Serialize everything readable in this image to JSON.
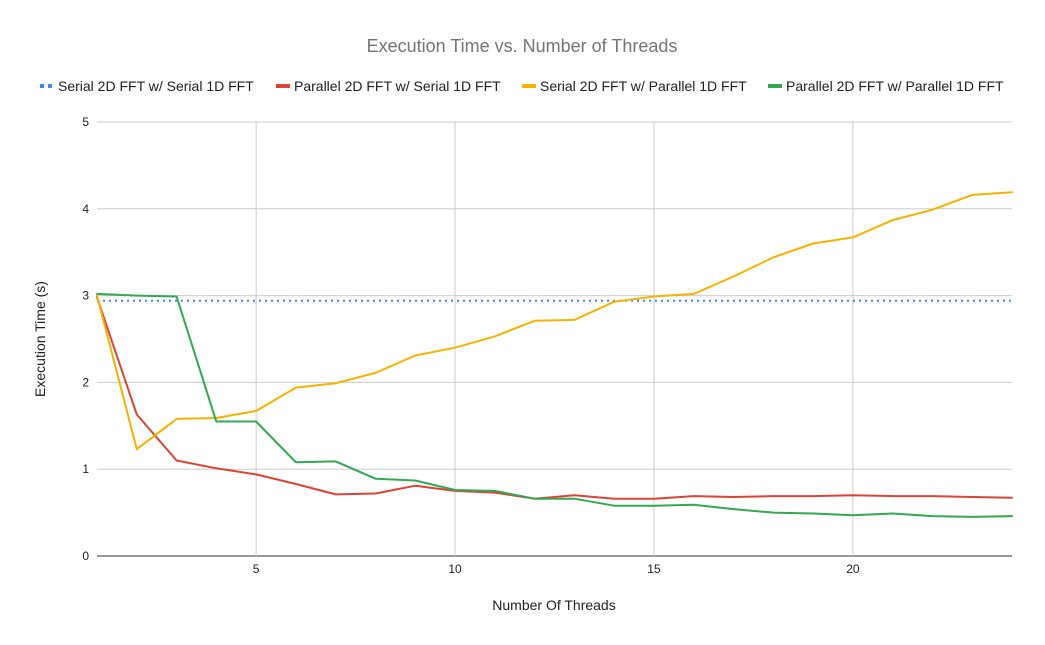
{
  "chart_data": {
    "type": "line",
    "title": "Execution Time vs. Number of Threads",
    "xlabel": "Number Of Threads",
    "ylabel": "Execution Time (s)",
    "xlim": [
      1,
      24
    ],
    "ylim": [
      0,
      5
    ],
    "x_ticks": [
      5,
      10,
      15,
      20
    ],
    "y_ticks": [
      0,
      1,
      2,
      3,
      4,
      5
    ],
    "grid": true,
    "legend_position": "top",
    "x": [
      1,
      2,
      3,
      4,
      5,
      6,
      7,
      8,
      9,
      10,
      11,
      12,
      13,
      14,
      15,
      16,
      17,
      18,
      19,
      20,
      21,
      22,
      23,
      24
    ],
    "series": [
      {
        "name": "Serial 2D FFT w/ Serial 1D FFT",
        "color": "#4285F4",
        "style": "dotted",
        "values": [
          2.94,
          2.94,
          2.94,
          2.94,
          2.94,
          2.94,
          2.94,
          2.94,
          2.94,
          2.94,
          2.94,
          2.94,
          2.94,
          2.94,
          2.94,
          2.94,
          2.94,
          2.94,
          2.94,
          2.94,
          2.94,
          2.94,
          2.94,
          2.94
        ]
      },
      {
        "name": "Parallel 2D FFT w/ Serial 1D FFT",
        "color": "#DB4437",
        "style": "solid",
        "values": [
          2.98,
          1.63,
          1.1,
          1.01,
          0.94,
          0.83,
          0.71,
          0.72,
          0.81,
          0.75,
          0.73,
          0.66,
          0.7,
          0.66,
          0.66,
          0.69,
          0.68,
          0.69,
          0.69,
          0.7,
          0.69,
          0.69,
          0.68,
          0.67
        ]
      },
      {
        "name": "Serial 2D FFT w/ Parallel 1D FFT",
        "color": "#F4B400",
        "style": "solid",
        "values": [
          3.0,
          1.23,
          1.58,
          1.59,
          1.67,
          1.94,
          1.99,
          2.11,
          2.31,
          2.4,
          2.53,
          2.71,
          2.72,
          2.93,
          2.99,
          3.02,
          3.22,
          3.44,
          3.6,
          3.67,
          3.87,
          3.99,
          4.16,
          4.19
        ]
      },
      {
        "name": "Parallel 2D FFT w/ Parallel 1D FFT",
        "color": "#34A853",
        "style": "solid",
        "values": [
          3.02,
          3.0,
          2.99,
          1.55,
          1.55,
          1.08,
          1.09,
          0.89,
          0.87,
          0.76,
          0.75,
          0.66,
          0.66,
          0.58,
          0.58,
          0.59,
          0.54,
          0.5,
          0.49,
          0.47,
          0.49,
          0.46,
          0.45,
          0.46
        ]
      }
    ]
  }
}
